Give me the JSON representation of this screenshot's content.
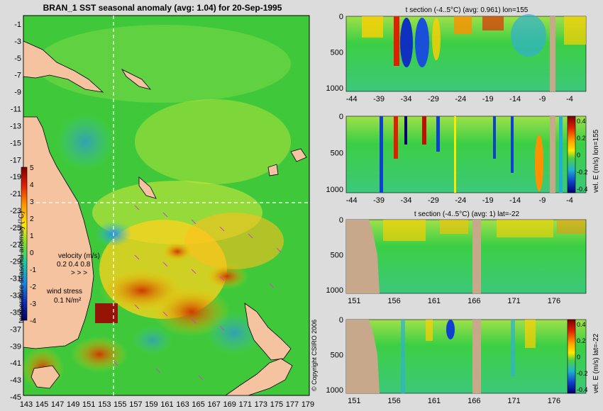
{
  "map": {
    "title": "BRAN_1  SST seasonal anomaly (avg: 1.04) for 20-Sep-1995",
    "y_ticks": [
      "-1",
      "-3",
      "-5",
      "-7",
      "-9",
      "-11",
      "-13",
      "-15",
      "-17",
      "-19",
      "-21",
      "-23",
      "-25",
      "-27",
      "-29",
      "-31",
      "-33",
      "-35",
      "-37",
      "-39",
      "-41",
      "-43",
      "-45"
    ],
    "x_ticks": [
      "143",
      "145",
      "147",
      "149",
      "151",
      "153",
      "155",
      "157",
      "159",
      "161",
      "163",
      "165",
      "167",
      "169",
      "171",
      "173",
      "175",
      "177",
      "179"
    ],
    "colorbar": {
      "ticks": [
        "5",
        "4",
        "3",
        "2",
        "1",
        "0",
        "-1",
        "-2",
        "-3",
        "-4"
      ],
      "label": "temperature seasonal anomaly (°C)"
    },
    "velocity_legend": {
      "title": "velocity (m/s)",
      "scale": "0.2 0.4 0.8",
      "arrows": "> > >"
    },
    "wind_legend": {
      "title": "wind stress",
      "value": "0.1 N/m²"
    },
    "copyright": "© Copyright CSIRO 2006"
  },
  "chart_data": [
    {
      "type": "heatmap",
      "title": "t section (-4..5°C) (avg: 0.961) lon=155",
      "xticks": [
        "-44",
        "-39",
        "-34",
        "-29",
        "-24",
        "-19",
        "-14",
        "-9",
        "-4"
      ],
      "yticks": [
        "0",
        "500",
        "1000"
      ],
      "xlim": [
        -45,
        -1
      ],
      "ylim": [
        1050,
        0
      ],
      "colorbar": null
    },
    {
      "type": "heatmap",
      "title": "",
      "xticks": [
        "-44",
        "-39",
        "-34",
        "-29",
        "-24",
        "-19",
        "-14",
        "-9",
        "-4"
      ],
      "yticks": [
        "0",
        "500",
        "1000"
      ],
      "xlim": [
        -45,
        -1
      ],
      "ylim": [
        1050,
        0
      ],
      "colorbar": {
        "ticks": [
          "0.4",
          "0.2",
          "0",
          "-0.2",
          "-0.4"
        ],
        "label": "vel. E (m/s) lon=155"
      }
    },
    {
      "type": "heatmap",
      "title": "t section (-4..5°C) (avg: 1) lat=-22",
      "xticks": [
        "151",
        "156",
        "161",
        "166",
        "171",
        "176"
      ],
      "yticks": [
        "0",
        "500",
        "1000"
      ],
      "xlim": [
        150,
        180
      ],
      "ylim": [
        1050,
        0
      ],
      "colorbar": null
    },
    {
      "type": "heatmap",
      "title": "",
      "xticks": [
        "151",
        "156",
        "161",
        "166",
        "171",
        "176"
      ],
      "yticks": [
        "0",
        "500",
        "1000"
      ],
      "xlim": [
        150,
        180
      ],
      "ylim": [
        1050,
        0
      ],
      "colorbar": {
        "ticks": [
          "0.4",
          "0.2",
          "0",
          "-0.2",
          "-0.4"
        ],
        "label": "vel. E (m/s) lat=-22"
      }
    }
  ]
}
